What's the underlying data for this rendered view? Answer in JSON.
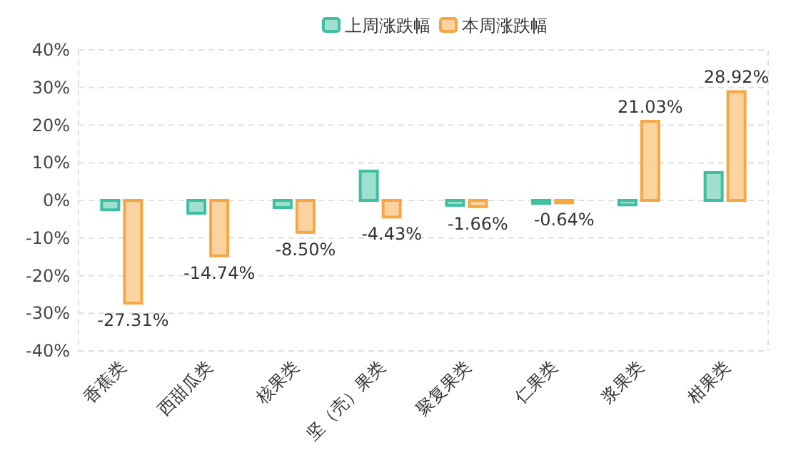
{
  "chart_data": {
    "type": "bar",
    "categories": [
      "香蕉类",
      "西甜瓜类",
      "核果类",
      "坚（壳）果类",
      "聚复果类",
      "仁果类",
      "浆果类",
      "柑果类"
    ],
    "series": [
      {
        "name": "上周涨跌幅",
        "color": "#3fbfa0",
        "values": [
          -2.5,
          -3.4,
          -1.9,
          7.8,
          -1.3,
          -0.8,
          -1.2,
          7.4
        ]
      },
      {
        "name": "本周涨跌幅",
        "color": "#f5a742",
        "values": [
          -27.31,
          -14.74,
          -8.5,
          -4.43,
          -1.66,
          -0.64,
          21.03,
          28.92
        ],
        "value_labels": [
          "-27.31%",
          "-14.74%",
          "-8.50%",
          "-4.43%",
          "-1.66%",
          "-0.64%",
          "21.03%",
          "28.92%"
        ]
      }
    ],
    "ylim": [
      -40,
      40
    ],
    "yticks": [
      {
        "value": -40,
        "label": "-40%"
      },
      {
        "value": -30,
        "label": "-30%"
      },
      {
        "value": -20,
        "label": "-20%"
      },
      {
        "value": -10,
        "label": "-10%"
      },
      {
        "value": 0,
        "label": "0%"
      },
      {
        "value": 10,
        "label": "10%"
      },
      {
        "value": 20,
        "label": "20%"
      },
      {
        "value": 30,
        "label": "30%"
      },
      {
        "value": 40,
        "label": "40%"
      }
    ],
    "grid": "y",
    "legend": "top"
  }
}
